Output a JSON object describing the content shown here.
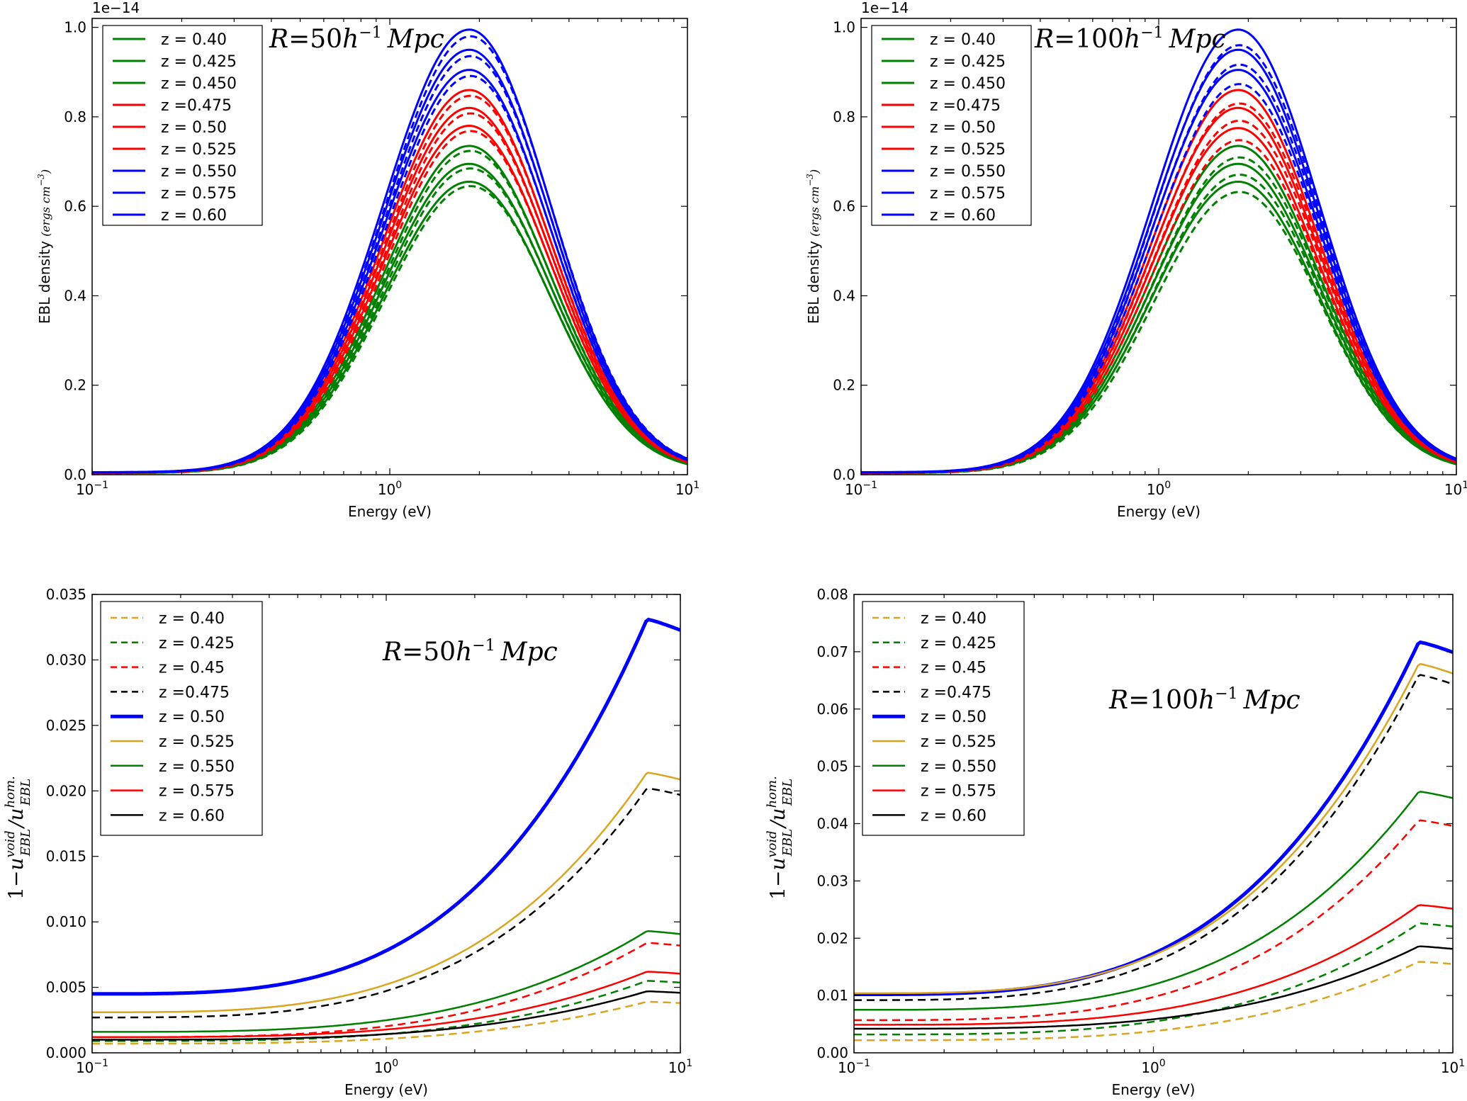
{
  "chart_data": [
    {
      "id": "top-left",
      "type": "line",
      "xscale": "log",
      "xlim": [
        0.1,
        10
      ],
      "ylim": [
        0,
        1.02
      ],
      "yticks": [
        0.0,
        0.2,
        0.4,
        0.6,
        0.8,
        1.0
      ],
      "ytick_labels": [
        "0.0",
        "0.2",
        "0.4",
        "0.6",
        "0.8",
        "1.0"
      ],
      "xtick_labels": [
        {
          "base": "10",
          "exp": "−1"
        },
        {
          "base": "10",
          "exp": "0"
        },
        {
          "base": "10",
          "exp": "1"
        }
      ],
      "offset_text": "1e−14",
      "xlabel": "Energy (eV)",
      "ylabel": "EBL density",
      "ylabel_unit": "(ergs cm",
      "ylabel_unit_exp": "−3",
      "ylabel_unit_close": ")",
      "annotation": {
        "prefix": "R",
        "eq": "=",
        "num": "50",
        "h": "h",
        "exp": "−1",
        "unit": "Mpc"
      },
      "legend_position": "upper-left",
      "curve": {
        "kind": "peak",
        "peak_x": 1.85,
        "sigma_lo": 0.85,
        "sigma_hi": 0.8,
        "tail_lo": 0.0055,
        "tail_hi": 0.01
      },
      "dashed_ratio": 0.985,
      "series": [
        {
          "name": "z = 0.40",
          "color": "#008000",
          "peak": 0.655
        },
        {
          "name": "z = 0.425",
          "color": "#008000",
          "peak": 0.695
        },
        {
          "name": "z = 0.450",
          "color": "#008000",
          "peak": 0.735
        },
        {
          "name": "z =0.475",
          "color": "#ff0000",
          "peak": 0.78
        },
        {
          "name": "z = 0.50",
          "color": "#ff0000",
          "peak": 0.82
        },
        {
          "name": "z = 0.525",
          "color": "#ff0000",
          "peak": 0.86
        },
        {
          "name": "z = 0.550",
          "color": "#0000ff",
          "peak": 0.905
        },
        {
          "name": "z = 0.575",
          "color": "#0000ff",
          "peak": 0.95
        },
        {
          "name": "z = 0.60",
          "color": "#0000ff",
          "peak": 0.995
        }
      ]
    },
    {
      "id": "top-right",
      "type": "line",
      "xscale": "log",
      "xlim": [
        0.1,
        10
      ],
      "ylim": [
        0,
        1.02
      ],
      "yticks": [
        0.0,
        0.2,
        0.4,
        0.6,
        0.8,
        1.0
      ],
      "ytick_labels": [
        "0.0",
        "0.2",
        "0.4",
        "0.6",
        "0.8",
        "1.0"
      ],
      "xtick_labels": [
        {
          "base": "10",
          "exp": "−1"
        },
        {
          "base": "10",
          "exp": "0"
        },
        {
          "base": "10",
          "exp": "1"
        }
      ],
      "offset_text": "1e−14",
      "xlabel": "Energy (eV)",
      "ylabel": "EBL density",
      "ylabel_unit": "(ergs cm",
      "ylabel_unit_exp": "−3",
      "ylabel_unit_close": ")",
      "annotation": {
        "prefix": "R",
        "eq": "=",
        "num": "100",
        "h": "h",
        "exp": "−1",
        "unit": "Mpc"
      },
      "legend_position": "upper-left",
      "curve": {
        "kind": "peak",
        "peak_x": 1.85,
        "sigma_lo": 0.85,
        "sigma_hi": 0.8,
        "tail_lo": 0.0055,
        "tail_hi": 0.01
      },
      "dashed_ratio": 0.965,
      "series": [
        {
          "name": "z = 0.40",
          "color": "#008000",
          "peak": 0.655
        },
        {
          "name": "z = 0.425",
          "color": "#008000",
          "peak": 0.695
        },
        {
          "name": "z = 0.450",
          "color": "#008000",
          "peak": 0.735
        },
        {
          "name": "z =0.475",
          "color": "#ff0000",
          "peak": 0.775
        },
        {
          "name": "z = 0.50",
          "color": "#ff0000",
          "peak": 0.82
        },
        {
          "name": "z = 0.525",
          "color": "#ff0000",
          "peak": 0.86
        },
        {
          "name": "z = 0.550",
          "color": "#0000ff",
          "peak": 0.905
        },
        {
          "name": "z = 0.575",
          "color": "#0000ff",
          "peak": 0.95
        },
        {
          "name": "z = 0.60",
          "color": "#0000ff",
          "peak": 0.995
        }
      ]
    },
    {
      "id": "bottom-left",
      "type": "line",
      "xscale": "log",
      "xlim": [
        0.1,
        10
      ],
      "ylim": [
        0,
        0.035
      ],
      "yticks": [
        0.0,
        0.005,
        0.01,
        0.015,
        0.02,
        0.025,
        0.03,
        0.035
      ],
      "ytick_labels": [
        "0.000",
        "0.005",
        "0.010",
        "0.015",
        "0.020",
        "0.025",
        "0.030",
        "0.035"
      ],
      "xtick_labels": [
        {
          "base": "10",
          "exp": "−1"
        },
        {
          "base": "10",
          "exp": "0"
        },
        {
          "base": "10",
          "exp": "1"
        }
      ],
      "xlabel": "Energy (eV)",
      "ylabel_math": {
        "one": "1",
        "minus": "−",
        "u": "u",
        "sup1": "void",
        "sub1": "EBL",
        "slash": "/",
        "sup2": "hom.",
        "sub2": "EBL"
      },
      "annotation": {
        "prefix": "R",
        "eq": "=",
        "num": "50",
        "h": "h",
        "exp": "−1",
        "unit": "Mpc"
      },
      "legend_position": "upper-left",
      "curve": {
        "kind": "rise",
        "peak_x": 7.7,
        "width": 0.5,
        "end_ratio": 0.975
      },
      "series": [
        {
          "name": "z = 0.40",
          "color": "#daa520",
          "style": "dashed",
          "width": 2.5,
          "low": 0.0007,
          "high": 0.0039
        },
        {
          "name": "z = 0.425",
          "color": "#008000",
          "style": "dashed",
          "width": 2.5,
          "low": 0.0009,
          "high": 0.0055
        },
        {
          "name": "z = 0.45",
          "color": "#ff0000",
          "style": "dashed",
          "width": 2.5,
          "low": 0.0012,
          "high": 0.0084
        },
        {
          "name": "z =0.475",
          "color": "#000000",
          "style": "dashed",
          "width": 2.5,
          "low": 0.0027,
          "high": 0.0202
        },
        {
          "name": "z = 0.50",
          "color": "#0000ff",
          "style": "solid",
          "width": 5,
          "low": 0.0045,
          "high": 0.0331
        },
        {
          "name": "z = 0.525",
          "color": "#daa520",
          "style": "solid",
          "width": 2.5,
          "low": 0.0031,
          "high": 0.0214
        },
        {
          "name": "z = 0.550",
          "color": "#008000",
          "style": "solid",
          "width": 2.5,
          "low": 0.0016,
          "high": 0.0093
        },
        {
          "name": "z = 0.575",
          "color": "#ff0000",
          "style": "solid",
          "width": 2.5,
          "low": 0.0012,
          "high": 0.0062
        },
        {
          "name": "z = 0.60",
          "color": "#000000",
          "style": "solid",
          "width": 2.5,
          "low": 0.001,
          "high": 0.0047
        }
      ]
    },
    {
      "id": "bottom-right",
      "type": "line",
      "xscale": "log",
      "xlim": [
        0.1,
        10
      ],
      "ylim": [
        0,
        0.08
      ],
      "yticks": [
        0.0,
        0.01,
        0.02,
        0.03,
        0.04,
        0.05,
        0.06,
        0.07,
        0.08
      ],
      "ytick_labels": [
        "0.00",
        "0.01",
        "0.02",
        "0.03",
        "0.04",
        "0.05",
        "0.06",
        "0.07",
        "0.08"
      ],
      "xtick_labels": [
        {
          "base": "10",
          "exp": "−1"
        },
        {
          "base": "10",
          "exp": "0"
        },
        {
          "base": "10",
          "exp": "1"
        }
      ],
      "xlabel": "Energy (eV)",
      "ylabel_math": {
        "one": "1",
        "minus": "−",
        "u": "u",
        "sup1": "void",
        "sub1": "EBL",
        "slash": "/",
        "sup2": "hom.",
        "sub2": "EBL"
      },
      "annotation": {
        "prefix": "R",
        "eq": "=",
        "num": "100",
        "h": "h",
        "exp": "−1",
        "unit": "Mpc"
      },
      "legend_position": "upper-left",
      "curve": {
        "kind": "rise",
        "peak_x": 7.7,
        "width": 0.5,
        "end_ratio": 0.975
      },
      "series": [
        {
          "name": "z = 0.40",
          "color": "#daa520",
          "style": "dashed",
          "width": 2.5,
          "low": 0.0022,
          "high": 0.0159
        },
        {
          "name": "z = 0.425",
          "color": "#008000",
          "style": "dashed",
          "width": 2.5,
          "low": 0.0032,
          "high": 0.0226
        },
        {
          "name": "z = 0.45",
          "color": "#ff0000",
          "style": "dashed",
          "width": 2.5,
          "low": 0.0057,
          "high": 0.0406
        },
        {
          "name": "z =0.475",
          "color": "#000000",
          "style": "dashed",
          "width": 2.5,
          "low": 0.0092,
          "high": 0.066
        },
        {
          "name": "z = 0.50",
          "color": "#0000ff",
          "style": "solid",
          "width": 5,
          "low": 0.0102,
          "high": 0.0717
        },
        {
          "name": "z = 0.525",
          "color": "#daa520",
          "style": "solid",
          "width": 2.5,
          "low": 0.0104,
          "high": 0.0679
        },
        {
          "name": "z = 0.550",
          "color": "#008000",
          "style": "solid",
          "width": 2.5,
          "low": 0.0075,
          "high": 0.0456
        },
        {
          "name": "z = 0.575",
          "color": "#ff0000",
          "style": "solid",
          "width": 2.5,
          "low": 0.0049,
          "high": 0.0258
        },
        {
          "name": "z = 0.60",
          "color": "#000000",
          "style": "solid",
          "width": 2.5,
          "low": 0.0042,
          "high": 0.0186
        }
      ]
    }
  ]
}
